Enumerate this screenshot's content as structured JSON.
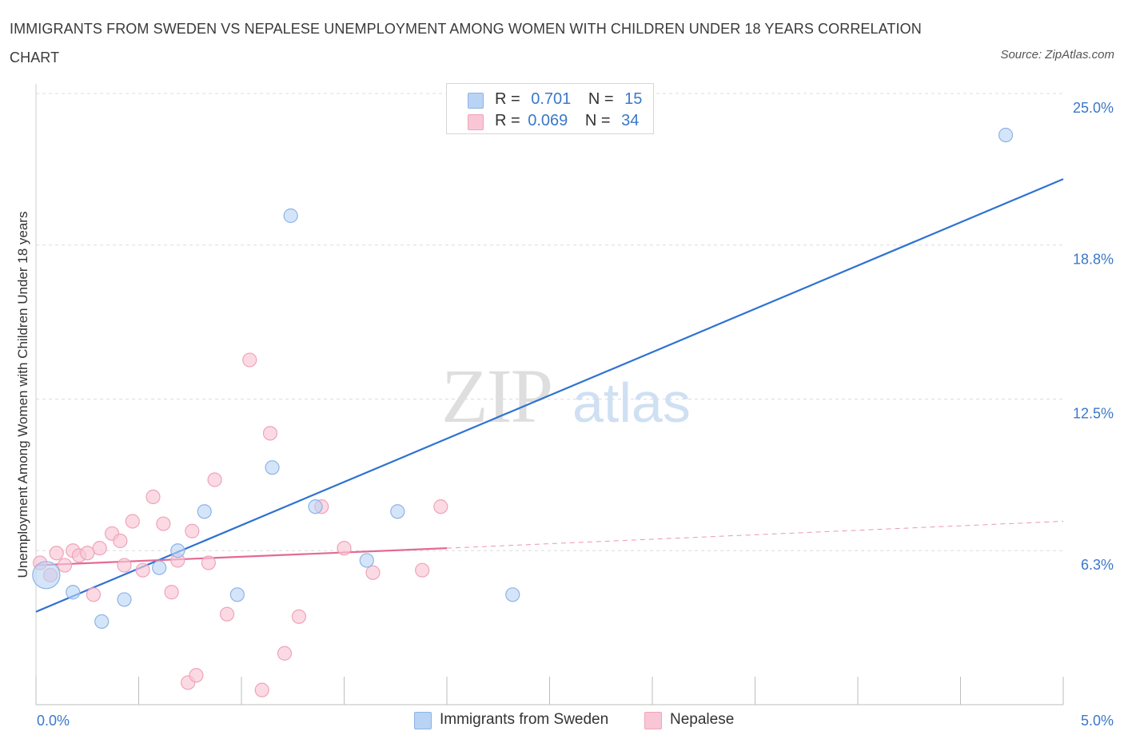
{
  "title": "IMMIGRANTS FROM SWEDEN VS NEPALESE UNEMPLOYMENT AMONG WOMEN WITH CHILDREN UNDER 18 YEARS CORRELATION CHART",
  "source": "Source: ZipAtlas.com",
  "watermark": {
    "zip": "ZIP",
    "atlas": "atlas"
  },
  "legend": {
    "rows": [
      {
        "r_label": "R =",
        "r_value": "0.701",
        "n_label": "N =",
        "n_value": "15"
      },
      {
        "r_label": "R =",
        "r_value": "0.069",
        "n_label": "N =",
        "n_value": "34"
      }
    ]
  },
  "colors": {
    "sweden_fill": "#b9d3f5",
    "sweden_stroke": "#8db3e6",
    "sweden_line": "#2e72d2",
    "nepal_fill": "#f9c6d6",
    "nepal_stroke": "#efa3bc",
    "nepal_line": "#e36a93",
    "axis_label": "#3a78c9",
    "grid": "#dcdcdc"
  },
  "chart_data": {
    "type": "scatter",
    "title": "IMMIGRANTS FROM SWEDEN VS NEPALESE UNEMPLOYMENT AMONG WOMEN WITH CHILDREN UNDER 18 YEARS CORRELATION CHART",
    "xlabel": "",
    "ylabel": "Unemployment Among Women with Children Under 18 years",
    "xlim": [
      0,
      5
    ],
    "ylim": [
      0,
      25
    ],
    "x_tick_labels": [
      "0.0%",
      "5.0%"
    ],
    "y_ticks": [
      6.3,
      12.5,
      18.8,
      25.0
    ],
    "y_tick_labels": [
      "6.3%",
      "12.5%",
      "18.8%",
      "25.0%"
    ],
    "grid": true,
    "legend_position": "top-center",
    "series": [
      {
        "name": "Immigrants from Sweden",
        "color": "#2e72d2",
        "points": [
          [
            0.05,
            5.3
          ],
          [
            0.18,
            4.6
          ],
          [
            0.32,
            3.4
          ],
          [
            0.43,
            4.3
          ],
          [
            0.6,
            5.6
          ],
          [
            0.69,
            6.3
          ],
          [
            0.82,
            7.9
          ],
          [
            0.98,
            4.5
          ],
          [
            1.15,
            9.7
          ],
          [
            1.24,
            20.0
          ],
          [
            1.36,
            8.1
          ],
          [
            1.61,
            5.9
          ],
          [
            1.76,
            7.9
          ],
          [
            2.32,
            4.5
          ],
          [
            4.72,
            23.3
          ]
        ],
        "trend": {
          "x": [
            0.0,
            5.0
          ],
          "y": [
            3.8,
            21.5
          ],
          "style": "solid"
        }
      },
      {
        "name": "Nepalese",
        "color": "#e36a93",
        "points": [
          [
            0.02,
            5.8
          ],
          [
            0.07,
            5.3
          ],
          [
            0.1,
            6.2
          ],
          [
            0.14,
            5.7
          ],
          [
            0.18,
            6.3
          ],
          [
            0.21,
            6.1
          ],
          [
            0.25,
            6.2
          ],
          [
            0.28,
            4.5
          ],
          [
            0.31,
            6.4
          ],
          [
            0.37,
            7.0
          ],
          [
            0.41,
            6.7
          ],
          [
            0.43,
            5.7
          ],
          [
            0.47,
            7.5
          ],
          [
            0.52,
            5.5
          ],
          [
            0.57,
            8.5
          ],
          [
            0.62,
            7.4
          ],
          [
            0.66,
            4.6
          ],
          [
            0.69,
            5.9
          ],
          [
            0.74,
            0.9
          ],
          [
            0.76,
            7.1
          ],
          [
            0.78,
            1.2
          ],
          [
            0.84,
            5.8
          ],
          [
            0.87,
            9.2
          ],
          [
            0.93,
            3.7
          ],
          [
            1.04,
            14.1
          ],
          [
            1.1,
            0.6
          ],
          [
            1.14,
            11.1
          ],
          [
            1.21,
            2.1
          ],
          [
            1.28,
            3.6
          ],
          [
            1.39,
            8.1
          ],
          [
            1.5,
            6.4
          ],
          [
            1.64,
            5.4
          ],
          [
            1.88,
            5.5
          ],
          [
            1.97,
            8.1
          ]
        ],
        "trend": {
          "x": [
            0.0,
            2.0
          ],
          "y": [
            5.7,
            6.4
          ],
          "style": "solid"
        },
        "trend_extension": {
          "x": [
            2.0,
            5.0
          ],
          "y": [
            6.4,
            7.5
          ],
          "style": "dashed"
        }
      }
    ]
  }
}
